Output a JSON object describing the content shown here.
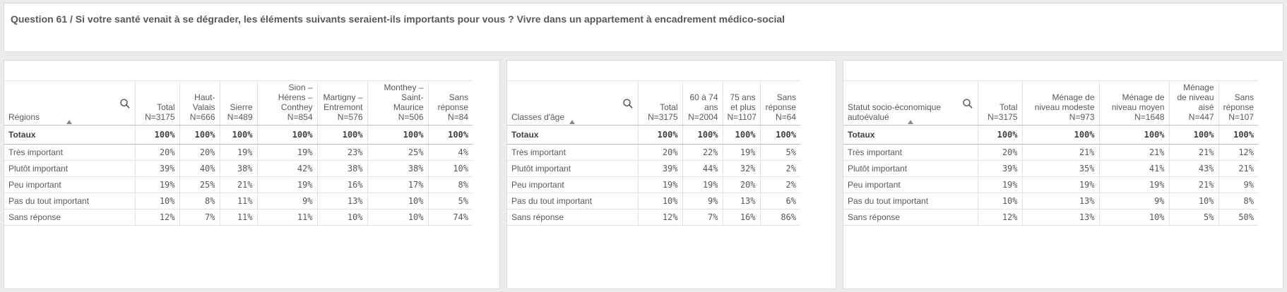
{
  "title": "Question 61 / Si votre santé venait à se dégrader, les éléments suivants seraient-ils importants pour vous ? Vivre dans un appartement à encadrement médico-social",
  "row_labels": [
    "Très important",
    "Plutôt important",
    "Peu important",
    "Pas du tout important",
    "Sans réponse"
  ],
  "totals_label": "Totaux",
  "tables": [
    {
      "dimension": "Régions",
      "columns": [
        {
          "name": "Total",
          "n": "N=3175"
        },
        {
          "name": "Haut-Valais",
          "n": "N=666"
        },
        {
          "name": "Sierre",
          "n": "N=489"
        },
        {
          "name": "Sion – Hérens – Conthey",
          "n": "N=854"
        },
        {
          "name": "Martigny – Entremont",
          "n": "N=576"
        },
        {
          "name": "Monthey – Saint-Maurice",
          "n": "N=506"
        },
        {
          "name": "Sans réponse",
          "n": "N=84"
        }
      ],
      "totals": [
        "100%",
        "100%",
        "100%",
        "100%",
        "100%",
        "100%",
        "100%"
      ],
      "rows": [
        [
          "20%",
          "20%",
          "19%",
          "19%",
          "23%",
          "25%",
          "4%"
        ],
        [
          "39%",
          "40%",
          "38%",
          "42%",
          "38%",
          "38%",
          "10%"
        ],
        [
          "19%",
          "25%",
          "21%",
          "19%",
          "16%",
          "17%",
          "8%"
        ],
        [
          "10%",
          "8%",
          "11%",
          "9%",
          "13%",
          "10%",
          "5%"
        ],
        [
          "12%",
          "7%",
          "11%",
          "11%",
          "10%",
          "10%",
          "74%"
        ]
      ]
    },
    {
      "dimension": "Classes d'âge",
      "columns": [
        {
          "name": "Total",
          "n": "N=3175"
        },
        {
          "name": "60 à 74 ans",
          "n": "N=2004"
        },
        {
          "name": "75 ans et plus",
          "n": "N=1107"
        },
        {
          "name": "Sans réponse",
          "n": "N=64"
        }
      ],
      "totals": [
        "100%",
        "100%",
        "100%",
        "100%"
      ],
      "rows": [
        [
          "20%",
          "22%",
          "19%",
          "5%"
        ],
        [
          "39%",
          "44%",
          "32%",
          "2%"
        ],
        [
          "19%",
          "19%",
          "20%",
          "2%"
        ],
        [
          "10%",
          "9%",
          "13%",
          "6%"
        ],
        [
          "12%",
          "7%",
          "16%",
          "86%"
        ]
      ]
    },
    {
      "dimension": "Statut socio-économique autoévalué",
      "columns": [
        {
          "name": "Total",
          "n": "N=3175"
        },
        {
          "name": "Ménage de niveau modeste",
          "n": "N=973"
        },
        {
          "name": "Ménage de niveau moyen",
          "n": "N=1648"
        },
        {
          "name": "Ménage de niveau aisé",
          "n": "N=447"
        },
        {
          "name": "Sans réponse",
          "n": "N=107"
        }
      ],
      "totals": [
        "100%",
        "100%",
        "100%",
        "100%",
        "100%"
      ],
      "rows": [
        [
          "20%",
          "21%",
          "21%",
          "21%",
          "12%"
        ],
        [
          "39%",
          "35%",
          "41%",
          "43%",
          "21%"
        ],
        [
          "19%",
          "19%",
          "19%",
          "21%",
          "9%"
        ],
        [
          "10%",
          "13%",
          "9%",
          "10%",
          "8%"
        ],
        [
          "12%",
          "13%",
          "10%",
          "5%",
          "50%"
        ]
      ]
    }
  ]
}
